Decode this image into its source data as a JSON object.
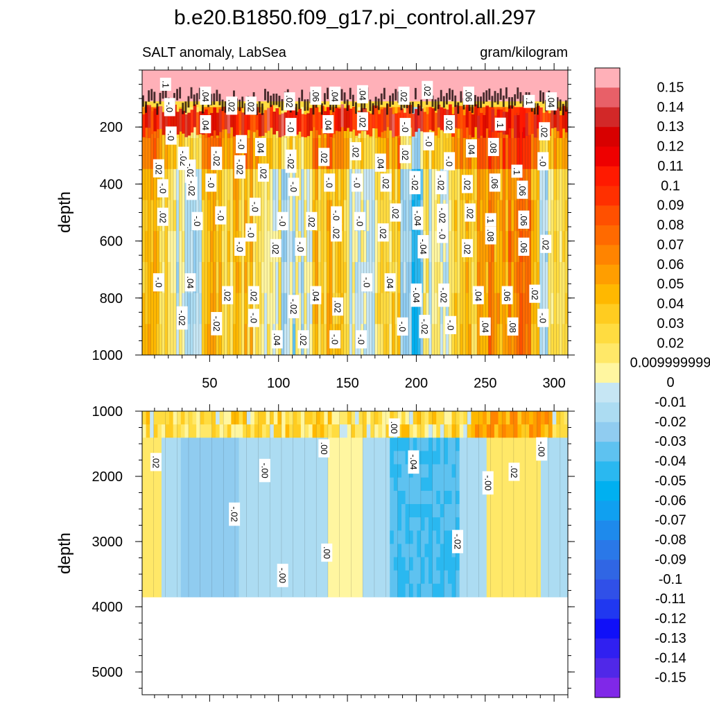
{
  "title": "b.e20.B1850.f09_g17.pi_control.all.297",
  "chart_data": [
    {
      "type": "heatmap",
      "name": "upper-depth-panel",
      "left_label": "SALT anomaly, LabSea",
      "right_label": "gram/kilogram",
      "ylabel": "depth",
      "ylim": [
        0,
        1000
      ],
      "y_reversed": true,
      "yticks": [
        200,
        400,
        600,
        800,
        1000
      ],
      "xlim": [
        1,
        310
      ],
      "xticks": [
        50,
        100,
        150,
        200,
        250,
        300
      ],
      "surface_band_top": 0,
      "surface_band_bottom": 150,
      "contour_labels": [
        {
          "text": ".1",
          "x": 18,
          "y": 50
        },
        {
          "text": "-.0",
          "x": 21,
          "y": 130
        },
        {
          "text": ".04",
          "x": 47,
          "y": 90
        },
        {
          "text": ".02",
          "x": 66,
          "y": 125
        },
        {
          "text": ".02",
          "x": 80,
          "y": 125
        },
        {
          "text": ".02",
          "x": 108,
          "y": 110
        },
        {
          "text": ".06",
          "x": 127,
          "y": 90
        },
        {
          "text": ".04",
          "x": 141,
          "y": 90
        },
        {
          "text": ".04",
          "x": 161,
          "y": 85
        },
        {
          "text": ".02",
          "x": 191,
          "y": 90
        },
        {
          "text": ".02",
          "x": 208,
          "y": 70
        },
        {
          "text": ".06",
          "x": 238,
          "y": 90
        },
        {
          "text": ".1",
          "x": 282,
          "y": 110
        },
        {
          "text": ".04",
          "x": 298,
          "y": 110
        },
        {
          "text": ".04",
          "x": 47,
          "y": 190
        },
        {
          "text": ".02",
          "x": 161,
          "y": 180
        },
        {
          "text": ".04",
          "x": 136,
          "y": 190
        },
        {
          "text": "-.0",
          "x": 109,
          "y": 200
        },
        {
          "text": "-.0",
          "x": 192,
          "y": 200
        },
        {
          "text": "-.0",
          "x": 209,
          "y": 250
        },
        {
          "text": ".02",
          "x": 224,
          "y": 190
        },
        {
          "text": ".1",
          "x": 261,
          "y": 190
        },
        {
          "text": ".02",
          "x": 293,
          "y": 215
        },
        {
          "text": "-.0",
          "x": 22,
          "y": 230
        },
        {
          "text": "-.0",
          "x": 73,
          "y": 260
        },
        {
          "text": ".04",
          "x": 87,
          "y": 270
        },
        {
          "text": ".02",
          "x": 13,
          "y": 345
        },
        {
          "text": "-.02",
          "x": 31,
          "y": 310
        },
        {
          "text": "-.02",
          "x": 55,
          "y": 310
        },
        {
          "text": "-.02",
          "x": 72,
          "y": 340
        },
        {
          "text": "-.02",
          "x": 109,
          "y": 320
        },
        {
          "text": ".02",
          "x": 133,
          "y": 305
        },
        {
          "text": ".02",
          "x": 156,
          "y": 285
        },
        {
          "text": ".04",
          "x": 174,
          "y": 325
        },
        {
          "text": ".02",
          "x": 192,
          "y": 295
        },
        {
          "text": "-.0",
          "x": 224,
          "y": 320
        },
        {
          "text": ".04",
          "x": 240,
          "y": 275
        },
        {
          "text": ".08",
          "x": 256,
          "y": 270
        },
        {
          "text": ".1",
          "x": 273,
          "y": 355
        },
        {
          "text": "-.0",
          "x": 292,
          "y": 320
        },
        {
          "text": "-.02",
          "x": 36,
          "y": 355
        },
        {
          "text": ".02",
          "x": 89,
          "y": 360
        },
        {
          "text": "-.0",
          "x": 16,
          "y": 415
        },
        {
          "text": "-.02",
          "x": 37,
          "y": 415
        },
        {
          "text": "-.0",
          "x": 51,
          "y": 395
        },
        {
          "text": "-.0",
          "x": 111,
          "y": 410
        },
        {
          "text": "-.0",
          "x": 137,
          "y": 395
        },
        {
          "text": "-.0",
          "x": 157,
          "y": 395
        },
        {
          "text": ".02",
          "x": 178,
          "y": 395
        },
        {
          "text": "-.02",
          "x": 199,
          "y": 395
        },
        {
          "text": "-.02",
          "x": 218,
          "y": 395
        },
        {
          "text": ".02",
          "x": 237,
          "y": 400
        },
        {
          "text": ".06",
          "x": 257,
          "y": 395
        },
        {
          "text": ".06",
          "x": 277,
          "y": 420
        },
        {
          "text": ".02",
          "x": 16,
          "y": 515
        },
        {
          "text": "-.0",
          "x": 41,
          "y": 530
        },
        {
          "text": "-.0",
          "x": 58,
          "y": 510
        },
        {
          "text": "-.0",
          "x": 83,
          "y": 480
        },
        {
          "text": "-.0",
          "x": 103,
          "y": 530
        },
        {
          "text": ".02",
          "x": 124,
          "y": 530
        },
        {
          "text": "-.0",
          "x": 142,
          "y": 510
        },
        {
          "text": "-.0",
          "x": 159,
          "y": 530
        },
        {
          "text": ".02",
          "x": 185,
          "y": 500
        },
        {
          "text": "-.04",
          "x": 201,
          "y": 520
        },
        {
          "text": "-.02",
          "x": 219,
          "y": 510
        },
        {
          "text": ".02",
          "x": 239,
          "y": 500
        },
        {
          "text": ".1",
          "x": 254,
          "y": 525
        },
        {
          "text": ".06",
          "x": 278,
          "y": 525
        },
        {
          "text": "-.0",
          "x": 80,
          "y": 570
        },
        {
          "text": "-.0",
          "x": 219,
          "y": 575
        },
        {
          "text": ".02",
          "x": 142,
          "y": 570
        },
        {
          "text": ".02",
          "x": 176,
          "y": 570
        },
        {
          "text": ".08",
          "x": 254,
          "y": 580
        },
        {
          "text": "-.04",
          "x": 205,
          "y": 620
        },
        {
          "text": "-.0",
          "x": 72,
          "y": 620
        },
        {
          "text": ".02",
          "x": 98,
          "y": 625
        },
        {
          "text": "-.0",
          "x": 116,
          "y": 620
        },
        {
          "text": ".02",
          "x": 237,
          "y": 625
        },
        {
          "text": ".06",
          "x": 278,
          "y": 620
        },
        {
          "text": ".02",
          "x": 294,
          "y": 610
        },
        {
          "text": "-.0",
          "x": 13,
          "y": 745
        },
        {
          "text": ".04",
          "x": 36,
          "y": 745
        },
        {
          "text": "-.0",
          "x": 164,
          "y": 745
        },
        {
          "text": ".04",
          "x": 181,
          "y": 745
        },
        {
          "text": ".02",
          "x": 63,
          "y": 790
        },
        {
          "text": ".02",
          "x": 82,
          "y": 790
        },
        {
          "text": ".04",
          "x": 127,
          "y": 790
        },
        {
          "text": "-.04",
          "x": 200,
          "y": 790
        },
        {
          "text": "-.02",
          "x": 220,
          "y": 790
        },
        {
          "text": ".04",
          "x": 245,
          "y": 790
        },
        {
          "text": ".06",
          "x": 266,
          "y": 790
        },
        {
          "text": ".02",
          "x": 286,
          "y": 785
        },
        {
          "text": "-.02",
          "x": 111,
          "y": 830
        },
        {
          "text": ".02",
          "x": 143,
          "y": 830
        },
        {
          "text": "-.02",
          "x": 30,
          "y": 870
        },
        {
          "text": "-.0",
          "x": 82,
          "y": 870
        },
        {
          "text": "-.02",
          "x": 55,
          "y": 890
        },
        {
          "text": "-.0",
          "x": 190,
          "y": 900
        },
        {
          "text": "-.02",
          "x": 206,
          "y": 900
        },
        {
          "text": "-.0",
          "x": 225,
          "y": 895
        },
        {
          "text": ".04",
          "x": 250,
          "y": 900
        },
        {
          "text": ".08",
          "x": 270,
          "y": 900
        },
        {
          "text": "-.0",
          "x": 292,
          "y": 870
        },
        {
          "text": ".04",
          "x": 99,
          "y": 945
        },
        {
          "text": ".02",
          "x": 118,
          "y": 945
        },
        {
          "text": "-.0",
          "x": 141,
          "y": 945
        },
        {
          "text": "-.0",
          "x": 160,
          "y": 945
        }
      ]
    },
    {
      "type": "heatmap",
      "name": "lower-depth-panel",
      "ylabel": "depth",
      "ylim": [
        1000,
        5350
      ],
      "y_reversed": true,
      "yticks": [
        1000,
        2000,
        3000,
        4000,
        5000
      ],
      "xlim": [
        1,
        310
      ],
      "data_bottom_depth": 3850,
      "contour_labels": [
        {
          "text": ".02",
          "x": 11,
          "y": 1780
        },
        {
          "text": ".00",
          "x": 184,
          "y": 1250
        },
        {
          "text": ".00",
          "x": 133,
          "y": 1570
        },
        {
          "text": "-.04",
          "x": 198,
          "y": 1780
        },
        {
          "text": "-.00",
          "x": 291,
          "y": 1580
        },
        {
          "text": "-.00",
          "x": 90,
          "y": 1910
        },
        {
          "text": ".02",
          "x": 271,
          "y": 1930
        },
        {
          "text": "-.00",
          "x": 252,
          "y": 2100
        },
        {
          "text": "-.02",
          "x": 68,
          "y": 2580
        },
        {
          "text": "-.02",
          "x": 230,
          "y": 3000
        },
        {
          "text": ".00",
          "x": 135,
          "y": 3170
        },
        {
          "text": "-.00",
          "x": 103,
          "y": 3520
        }
      ]
    }
  ],
  "colorbar": {
    "name": "color-scale",
    "levels": [
      {
        "label": "0.15",
        "color": "#ffb0b8"
      },
      {
        "label": "0.14",
        "color": "#e86068"
      },
      {
        "label": "0.13",
        "color": "#d22828"
      },
      {
        "label": "0.12",
        "color": "#d80000"
      },
      {
        "label": "0.11",
        "color": "#ee0000"
      },
      {
        "label": "0.1",
        "color": "#ff1a00"
      },
      {
        "label": "0.09",
        "color": "#ff3000"
      },
      {
        "label": "0.08",
        "color": "#ff5000"
      },
      {
        "label": "0.07",
        "color": "#ff6a00"
      },
      {
        "label": "0.06",
        "color": "#ff8400"
      },
      {
        "label": "0.05",
        "color": "#ff9e00"
      },
      {
        "label": "0.04",
        "color": "#ffb800"
      },
      {
        "label": "0.03",
        "color": "#ffcc20"
      },
      {
        "label": "0.02",
        "color": "#ffdc40"
      },
      {
        "label": "0.009999999",
        "color": "#ffe868"
      },
      {
        "label": "0",
        "color": "#fff6a0"
      },
      {
        "label": "-0.01",
        "color": "#c6e6f4"
      },
      {
        "label": "-0.02",
        "color": "#acdcf2"
      },
      {
        "label": "-0.03",
        "color": "#90ccf0"
      },
      {
        "label": "-0.04",
        "color": "#5ec2f0"
      },
      {
        "label": "-0.05",
        "color": "#2ab8f0"
      },
      {
        "label": "-0.06",
        "color": "#00b0f0"
      },
      {
        "label": "-0.07",
        "color": "#10a0f0"
      },
      {
        "label": "-0.08",
        "color": "#1e8aec"
      },
      {
        "label": "-0.09",
        "color": "#2a78e8"
      },
      {
        "label": "-0.1",
        "color": "#3066e4"
      },
      {
        "label": "-0.11",
        "color": "#3050e8"
      },
      {
        "label": "-0.12",
        "color": "#2038f0"
      },
      {
        "label": "-0.13",
        "color": "#1010f8"
      },
      {
        "label": "-0.14",
        "color": "#3020f0"
      },
      {
        "label": "-0.15",
        "color": "#5028e8"
      },
      {
        "label": "",
        "color": "#8028e8"
      }
    ]
  }
}
